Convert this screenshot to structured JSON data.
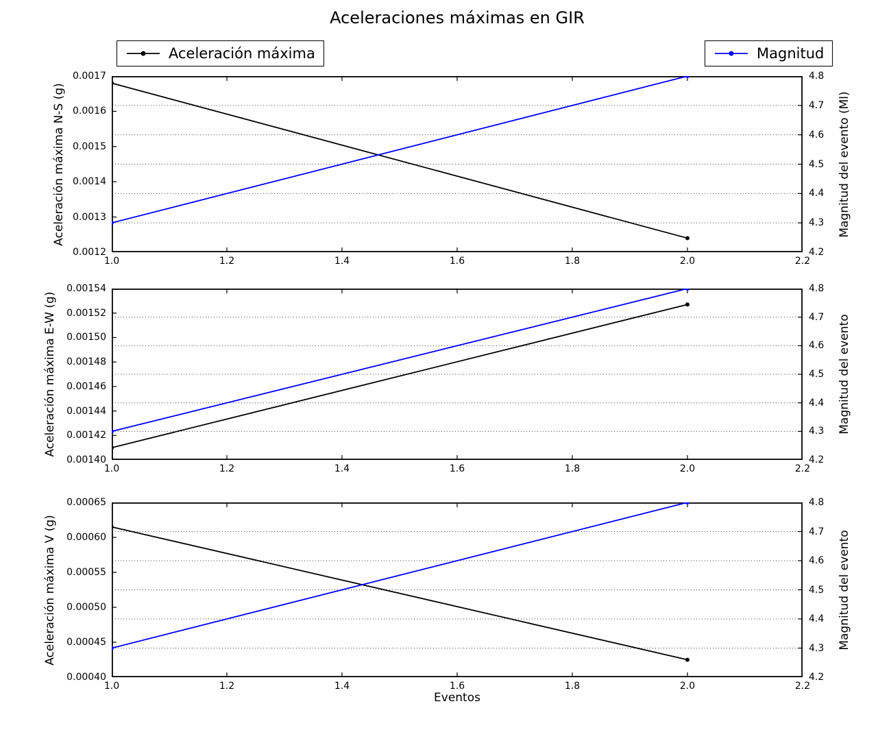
{
  "figure": {
    "title": "Aceleraciones máximas en GIR",
    "xlabel": "Eventos",
    "background_color": "#ffffff",
    "frame_color": "#000000",
    "grid_color": "#000000"
  },
  "legends": [
    {
      "label": "Aceleración máxima",
      "color": "#000000",
      "position": "top-left"
    },
    {
      "label": "Magnitud",
      "color": "#0000ff",
      "position": "top-right"
    }
  ],
  "chart_data": [
    {
      "type": "line",
      "panel": "N-S",
      "x": [
        1.0,
        2.0
      ],
      "xlim": [
        1.0,
        2.2
      ],
      "xticks": [
        1.0,
        1.2,
        1.4,
        1.6,
        1.8,
        2.0,
        2.2
      ],
      "xtick_labels": [
        "1.0",
        "1.2",
        "1.4",
        "1.6",
        "1.8",
        "2.0",
        "2.2"
      ],
      "left_axis": {
        "label": "Aceleración máxima N-S (g)",
        "lim": [
          0.0012,
          0.0017
        ],
        "ticks": [
          0.0012,
          0.0013,
          0.0014,
          0.0015,
          0.0016,
          0.0017
        ],
        "tick_labels": [
          "0.0012",
          "0.0013",
          "0.0014",
          "0.0015",
          "0.0016",
          "0.0017"
        ]
      },
      "right_axis": {
        "label": "Magnitud del evento (Ml)",
        "lim": [
          4.2,
          4.8
        ],
        "ticks": [
          4.2,
          4.3,
          4.4,
          4.5,
          4.6,
          4.7,
          4.8
        ],
        "tick_labels": [
          "4.2",
          "4.3",
          "4.4",
          "4.5",
          "4.6",
          "4.7",
          "4.8"
        ]
      },
      "grid": {
        "style": "dotted",
        "axis": "right",
        "lines_at": [
          4.3,
          4.4,
          4.5,
          4.6,
          4.7
        ]
      },
      "series": [
        {
          "name": "Aceleración máxima",
          "axis": "left",
          "color": "#000000",
          "marker": "dot",
          "values": [
            0.00168,
            0.00124
          ]
        },
        {
          "name": "Magnitud",
          "axis": "right",
          "color": "#0000ff",
          "marker": "dot",
          "values": [
            4.3,
            4.8
          ]
        }
      ]
    },
    {
      "type": "line",
      "panel": "E-W",
      "x": [
        1.0,
        2.0
      ],
      "xlim": [
        1.0,
        2.2
      ],
      "xticks": [
        1.0,
        1.2,
        1.4,
        1.6,
        1.8,
        2.0,
        2.2
      ],
      "xtick_labels": [
        "1.0",
        "1.2",
        "1.4",
        "1.6",
        "1.8",
        "2.0",
        "2.2"
      ],
      "left_axis": {
        "label": "Aceleración máxima E-W (g)",
        "lim": [
          0.0014,
          0.00154
        ],
        "ticks": [
          0.0014,
          0.00142,
          0.00144,
          0.00146,
          0.00148,
          0.0015,
          0.00152,
          0.00154
        ],
        "tick_labels": [
          "0.00140",
          "0.00142",
          "0.00144",
          "0.00146",
          "0.00148",
          "0.00150",
          "0.00152",
          "0.00154"
        ]
      },
      "right_axis": {
        "label": "Magnitud del evento",
        "lim": [
          4.2,
          4.8
        ],
        "ticks": [
          4.2,
          4.3,
          4.4,
          4.5,
          4.6,
          4.7,
          4.8
        ],
        "tick_labels": [
          "4.2",
          "4.3",
          "4.4",
          "4.5",
          "4.6",
          "4.7",
          "4.8"
        ]
      },
      "grid": {
        "style": "dotted",
        "axis": "right",
        "lines_at": [
          4.3,
          4.4,
          4.5,
          4.6,
          4.7
        ]
      },
      "series": [
        {
          "name": "Aceleración máxima",
          "axis": "left",
          "color": "#000000",
          "marker": "dot",
          "values": [
            0.00141,
            0.001527
          ]
        },
        {
          "name": "Magnitud",
          "axis": "right",
          "color": "#0000ff",
          "marker": "dot",
          "values": [
            4.3,
            4.8
          ]
        }
      ]
    },
    {
      "type": "line",
      "panel": "V",
      "x": [
        1.0,
        2.0
      ],
      "xlim": [
        1.0,
        2.2
      ],
      "xticks": [
        1.0,
        1.2,
        1.4,
        1.6,
        1.8,
        2.0,
        2.2
      ],
      "xtick_labels": [
        "1.0",
        "1.2",
        "1.4",
        "1.6",
        "1.8",
        "2.0",
        "2.2"
      ],
      "left_axis": {
        "label": "Aceleración máxima V (g)",
        "lim": [
          0.0004,
          0.00065
        ],
        "ticks": [
          0.0004,
          0.00045,
          0.0005,
          0.00055,
          0.0006,
          0.00065
        ],
        "tick_labels": [
          "0.00040",
          "0.00045",
          "0.00050",
          "0.00055",
          "0.00060",
          "0.00065"
        ]
      },
      "right_axis": {
        "label": "Magnitud del evento",
        "lim": [
          4.2,
          4.8
        ],
        "ticks": [
          4.2,
          4.3,
          4.4,
          4.5,
          4.6,
          4.7,
          4.8
        ],
        "tick_labels": [
          "4.2",
          "4.3",
          "4.4",
          "4.5",
          "4.6",
          "4.7",
          "4.8"
        ]
      },
      "grid": {
        "style": "dotted",
        "axis": "right",
        "lines_at": [
          4.3,
          4.4,
          4.5,
          4.6,
          4.7
        ]
      },
      "series": [
        {
          "name": "Aceleración máxima",
          "axis": "left",
          "color": "#000000",
          "marker": "dot",
          "values": [
            0.000615,
            0.000425
          ]
        },
        {
          "name": "Magnitud",
          "axis": "right",
          "color": "#0000ff",
          "marker": "dot",
          "values": [
            4.3,
            4.8
          ]
        }
      ]
    }
  ]
}
